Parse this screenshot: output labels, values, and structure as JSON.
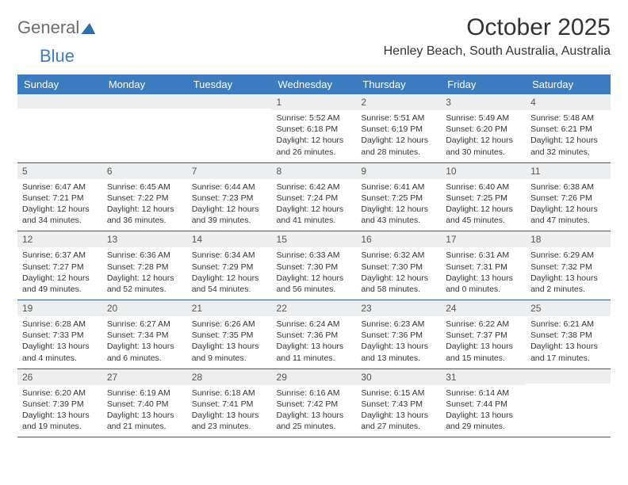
{
  "logo": {
    "part1": "General",
    "part2": "Blue"
  },
  "title": "October 2025",
  "location": "Henley Beach, South Australia, Australia",
  "style": {
    "header_bg": "#3b7bbf",
    "header_text": "#ffffff",
    "daynum_bg": "#eceeef",
    "border_color": "#2f5d8a",
    "body_text": "#333333",
    "logo_gray": "#6b6b6b",
    "logo_blue": "#3b7bbf"
  },
  "weekdays": [
    "Sunday",
    "Monday",
    "Tuesday",
    "Wednesday",
    "Thursday",
    "Friday",
    "Saturday"
  ],
  "weeks": [
    [
      {
        "day": "",
        "lines": [
          "",
          "",
          "",
          ""
        ]
      },
      {
        "day": "",
        "lines": [
          "",
          "",
          "",
          ""
        ]
      },
      {
        "day": "",
        "lines": [
          "",
          "",
          "",
          ""
        ]
      },
      {
        "day": "1",
        "lines": [
          "Sunrise: 5:52 AM",
          "Sunset: 6:18 PM",
          "Daylight: 12 hours",
          "and 26 minutes."
        ]
      },
      {
        "day": "2",
        "lines": [
          "Sunrise: 5:51 AM",
          "Sunset: 6:19 PM",
          "Daylight: 12 hours",
          "and 28 minutes."
        ]
      },
      {
        "day": "3",
        "lines": [
          "Sunrise: 5:49 AM",
          "Sunset: 6:20 PM",
          "Daylight: 12 hours",
          "and 30 minutes."
        ]
      },
      {
        "day": "4",
        "lines": [
          "Sunrise: 5:48 AM",
          "Sunset: 6:21 PM",
          "Daylight: 12 hours",
          "and 32 minutes."
        ]
      }
    ],
    [
      {
        "day": "5",
        "lines": [
          "Sunrise: 6:47 AM",
          "Sunset: 7:21 PM",
          "Daylight: 12 hours",
          "and 34 minutes."
        ]
      },
      {
        "day": "6",
        "lines": [
          "Sunrise: 6:45 AM",
          "Sunset: 7:22 PM",
          "Daylight: 12 hours",
          "and 36 minutes."
        ]
      },
      {
        "day": "7",
        "lines": [
          "Sunrise: 6:44 AM",
          "Sunset: 7:23 PM",
          "Daylight: 12 hours",
          "and 39 minutes."
        ]
      },
      {
        "day": "8",
        "lines": [
          "Sunrise: 6:42 AM",
          "Sunset: 7:24 PM",
          "Daylight: 12 hours",
          "and 41 minutes."
        ]
      },
      {
        "day": "9",
        "lines": [
          "Sunrise: 6:41 AM",
          "Sunset: 7:25 PM",
          "Daylight: 12 hours",
          "and 43 minutes."
        ]
      },
      {
        "day": "10",
        "lines": [
          "Sunrise: 6:40 AM",
          "Sunset: 7:25 PM",
          "Daylight: 12 hours",
          "and 45 minutes."
        ]
      },
      {
        "day": "11",
        "lines": [
          "Sunrise: 6:38 AM",
          "Sunset: 7:26 PM",
          "Daylight: 12 hours",
          "and 47 minutes."
        ]
      }
    ],
    [
      {
        "day": "12",
        "lines": [
          "Sunrise: 6:37 AM",
          "Sunset: 7:27 PM",
          "Daylight: 12 hours",
          "and 49 minutes."
        ]
      },
      {
        "day": "13",
        "lines": [
          "Sunrise: 6:36 AM",
          "Sunset: 7:28 PM",
          "Daylight: 12 hours",
          "and 52 minutes."
        ]
      },
      {
        "day": "14",
        "lines": [
          "Sunrise: 6:34 AM",
          "Sunset: 7:29 PM",
          "Daylight: 12 hours",
          "and 54 minutes."
        ]
      },
      {
        "day": "15",
        "lines": [
          "Sunrise: 6:33 AM",
          "Sunset: 7:30 PM",
          "Daylight: 12 hours",
          "and 56 minutes."
        ]
      },
      {
        "day": "16",
        "lines": [
          "Sunrise: 6:32 AM",
          "Sunset: 7:30 PM",
          "Daylight: 12 hours",
          "and 58 minutes."
        ]
      },
      {
        "day": "17",
        "lines": [
          "Sunrise: 6:31 AM",
          "Sunset: 7:31 PM",
          "Daylight: 13 hours",
          "and 0 minutes."
        ]
      },
      {
        "day": "18",
        "lines": [
          "Sunrise: 6:29 AM",
          "Sunset: 7:32 PM",
          "Daylight: 13 hours",
          "and 2 minutes."
        ]
      }
    ],
    [
      {
        "day": "19",
        "lines": [
          "Sunrise: 6:28 AM",
          "Sunset: 7:33 PM",
          "Daylight: 13 hours",
          "and 4 minutes."
        ]
      },
      {
        "day": "20",
        "lines": [
          "Sunrise: 6:27 AM",
          "Sunset: 7:34 PM",
          "Daylight: 13 hours",
          "and 6 minutes."
        ]
      },
      {
        "day": "21",
        "lines": [
          "Sunrise: 6:26 AM",
          "Sunset: 7:35 PM",
          "Daylight: 13 hours",
          "and 9 minutes."
        ]
      },
      {
        "day": "22",
        "lines": [
          "Sunrise: 6:24 AM",
          "Sunset: 7:36 PM",
          "Daylight: 13 hours",
          "and 11 minutes."
        ]
      },
      {
        "day": "23",
        "lines": [
          "Sunrise: 6:23 AM",
          "Sunset: 7:36 PM",
          "Daylight: 13 hours",
          "and 13 minutes."
        ]
      },
      {
        "day": "24",
        "lines": [
          "Sunrise: 6:22 AM",
          "Sunset: 7:37 PM",
          "Daylight: 13 hours",
          "and 15 minutes."
        ]
      },
      {
        "day": "25",
        "lines": [
          "Sunrise: 6:21 AM",
          "Sunset: 7:38 PM",
          "Daylight: 13 hours",
          "and 17 minutes."
        ]
      }
    ],
    [
      {
        "day": "26",
        "lines": [
          "Sunrise: 6:20 AM",
          "Sunset: 7:39 PM",
          "Daylight: 13 hours",
          "and 19 minutes."
        ]
      },
      {
        "day": "27",
        "lines": [
          "Sunrise: 6:19 AM",
          "Sunset: 7:40 PM",
          "Daylight: 13 hours",
          "and 21 minutes."
        ]
      },
      {
        "day": "28",
        "lines": [
          "Sunrise: 6:18 AM",
          "Sunset: 7:41 PM",
          "Daylight: 13 hours",
          "and 23 minutes."
        ]
      },
      {
        "day": "29",
        "lines": [
          "Sunrise: 6:16 AM",
          "Sunset: 7:42 PM",
          "Daylight: 13 hours",
          "and 25 minutes."
        ]
      },
      {
        "day": "30",
        "lines": [
          "Sunrise: 6:15 AM",
          "Sunset: 7:43 PM",
          "Daylight: 13 hours",
          "and 27 minutes."
        ]
      },
      {
        "day": "31",
        "lines": [
          "Sunrise: 6:14 AM",
          "Sunset: 7:44 PM",
          "Daylight: 13 hours",
          "and 29 minutes."
        ]
      },
      {
        "day": "",
        "lines": [
          "",
          "",
          "",
          ""
        ]
      }
    ]
  ]
}
